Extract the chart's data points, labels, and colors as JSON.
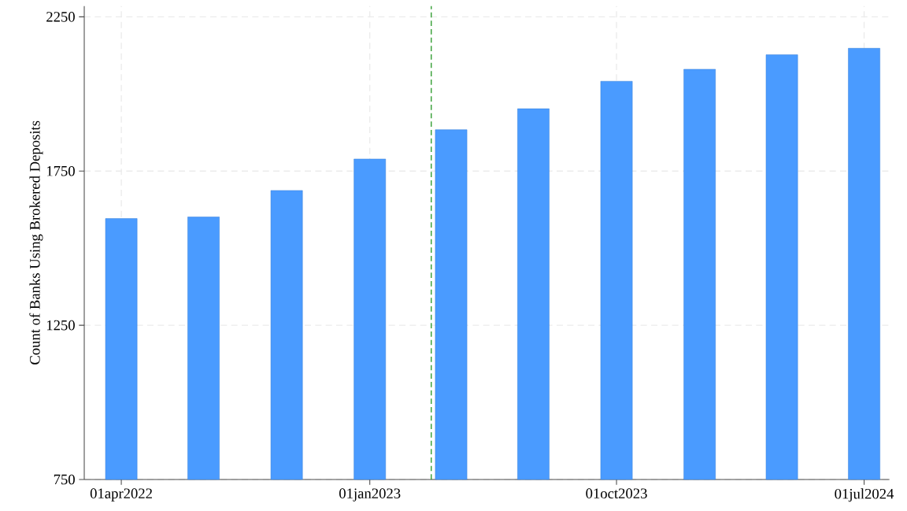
{
  "chart_data": {
    "type": "bar",
    "ylabel": "Count of Banks Using Brokered Deposits",
    "x": [
      "2022-04-01",
      "2022-07-01",
      "2022-10-01",
      "2023-01-01",
      "2023-04-01",
      "2023-07-01",
      "2023-10-01",
      "2024-01-01",
      "2024-04-01",
      "2024-07-01"
    ],
    "values": [
      1596,
      1601,
      1687,
      1789,
      1884,
      1952,
      2041,
      2080,
      2127,
      2148
    ],
    "color": "#4a9bff",
    "xlim": [
      "2022-02-19",
      "2024-07-29"
    ],
    "xticks": [
      {
        "value": "2022-04-01",
        "label": "01apr2022"
      },
      {
        "value": "2023-01-01",
        "label": "01jan2023"
      },
      {
        "value": "2023-10-01",
        "label": "01oct2023"
      },
      {
        "value": "2024-07-01",
        "label": "01jul2024"
      }
    ],
    "ylim": [
      750,
      2285
    ],
    "yticks": [
      750,
      1250,
      1750,
      2250
    ],
    "grid": true,
    "ref_lines": [
      {
        "axis": "x",
        "value": "2023-03-10",
        "color": "#2a9a2a",
        "line_style": "dashed"
      }
    ]
  }
}
